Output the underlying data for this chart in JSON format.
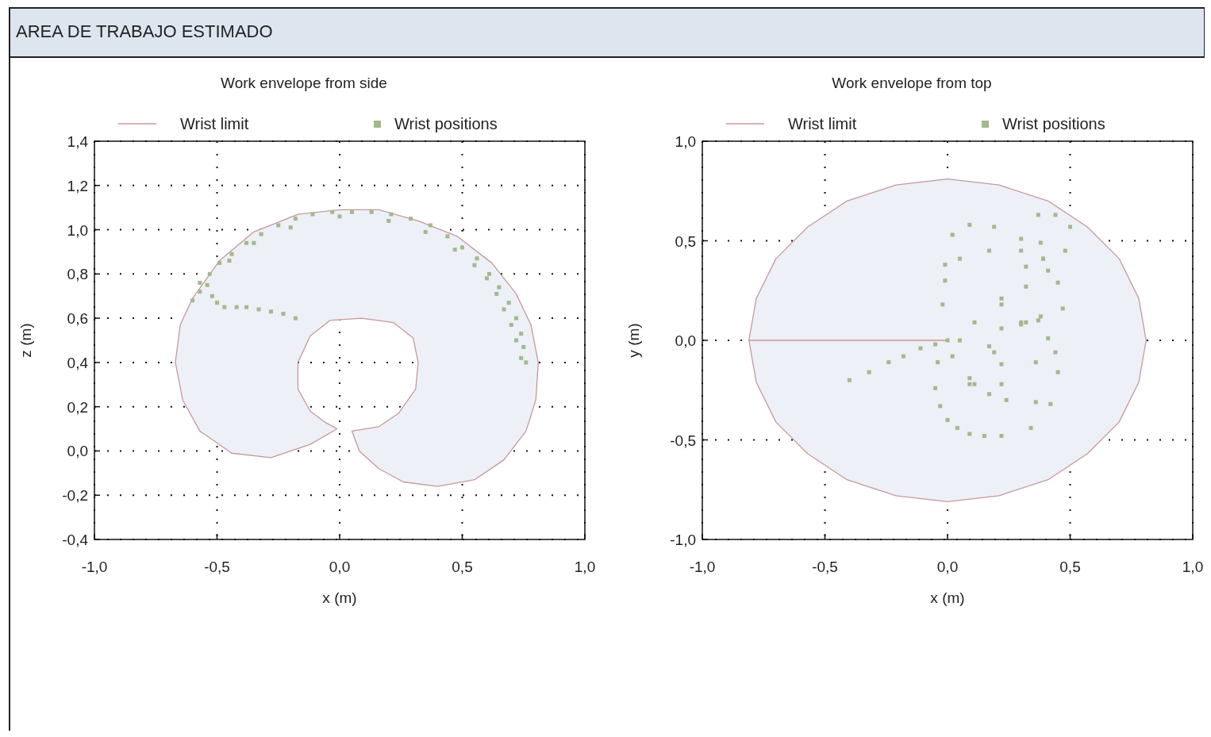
{
  "chart_data": [
    {
      "type": "other",
      "title": "AREA DE TRABAJO ESTIMADO"
    },
    {
      "type": "line",
      "title": "Work envelope from side",
      "xlabel": "x (m)",
      "ylabel": "z (m)",
      "legend": "top",
      "grid": true,
      "xlim": [
        -1,
        1
      ],
      "xticks": [
        {
          "value": -1,
          "label": "-1,0"
        },
        {
          "value": -0.5,
          "label": "-0,5"
        },
        {
          "value": 0,
          "label": "0,0"
        },
        {
          "value": 0.5,
          "label": "0,5"
        },
        {
          "value": 1,
          "label": "1,0"
        }
      ],
      "ylim": [
        -0.4,
        1.4
      ],
      "yticks": [
        {
          "value": -0.4,
          "label": "-0,4"
        },
        {
          "value": -0.2,
          "label": "-0,2"
        },
        {
          "value": 0,
          "label": "0,0"
        },
        {
          "value": 0.2,
          "label": "0,2"
        },
        {
          "value": 0.4,
          "label": "0,4"
        },
        {
          "value": 0.6,
          "label": "0,6"
        },
        {
          "value": 0.8,
          "label": "0,8"
        },
        {
          "value": 1,
          "label": "1,0"
        },
        {
          "value": 1.2,
          "label": "1,2"
        },
        {
          "value": 1.4,
          "label": "1,4"
        }
      ],
      "series": [
        {
          "name": "Wrist limit",
          "type": "area",
          "color": "#c89898",
          "x": [
            -0.01,
            -0.12,
            -0.28,
            -0.44,
            -0.57,
            -0.64,
            -0.67,
            -0.65,
            -0.6,
            -0.49,
            -0.35,
            -0.17,
            0,
            0.16,
            0.32,
            0.48,
            0.62,
            0.72,
            0.78,
            0.81,
            0.8,
            0.76,
            0.67,
            0.55,
            0.4,
            0.26,
            0.16,
            0.08,
            0.05,
            0.16,
            0.24,
            0.31,
            0.32,
            0.3,
            0.22,
            0.09,
            -0.04,
            -0.12,
            -0.17,
            -0.17,
            -0.12,
            -0.06,
            -0.01
          ],
          "values": [
            0.1,
            0.03,
            -0.03,
            -0.01,
            0.09,
            0.23,
            0.4,
            0.57,
            0.69,
            0.86,
            0.99,
            1.07,
            1.09,
            1.09,
            1.04,
            0.97,
            0.85,
            0.71,
            0.57,
            0.4,
            0.23,
            0.09,
            -0.04,
            -0.13,
            -0.16,
            -0.14,
            -0.08,
            0,
            0.09,
            0.11,
            0.17,
            0.28,
            0.4,
            0.51,
            0.58,
            0.6,
            0.59,
            0.52,
            0.4,
            0.28,
            0.18,
            0.13,
            0.1
          ]
        },
        {
          "name": "Wrist positions",
          "type": "scatter",
          "marker": "square",
          "color": "#a3b98c",
          "x": [
            -0.6,
            -0.57,
            -0.54,
            -0.52,
            -0.5,
            -0.47,
            -0.42,
            -0.38,
            -0.33,
            -0.28,
            -0.23,
            -0.18,
            -0.57,
            -0.53,
            -0.49,
            -0.44,
            -0.38,
            -0.32,
            -0.25,
            -0.18,
            -0.11,
            -0.03,
            0.05,
            0.13,
            0.21,
            0.29,
            0.37,
            0.44,
            0.5,
            0.56,
            0.61,
            0.65,
            0.69,
            0.72,
            0.74,
            0.75,
            0.76,
            -0.45,
            -0.35,
            -0.2,
            0,
            0.2,
            0.35,
            0.47,
            0.55,
            0.6,
            0.64,
            0.67,
            0.7,
            0.72,
            0.74
          ],
          "values": [
            0.68,
            0.72,
            0.75,
            0.7,
            0.67,
            0.65,
            0.65,
            0.65,
            0.64,
            0.63,
            0.62,
            0.6,
            0.76,
            0.8,
            0.85,
            0.89,
            0.94,
            0.98,
            1.02,
            1.05,
            1.07,
            1.08,
            1.08,
            1.08,
            1.07,
            1.05,
            1.02,
            0.97,
            0.92,
            0.87,
            0.8,
            0.74,
            0.67,
            0.6,
            0.53,
            0.47,
            0.4,
            0.86,
            0.94,
            1.01,
            1.06,
            1.04,
            0.99,
            0.91,
            0.84,
            0.78,
            0.71,
            0.64,
            0.57,
            0.5,
            0.42
          ]
        }
      ]
    },
    {
      "type": "line",
      "title": "Work envelope from top",
      "xlabel": "x (m)",
      "ylabel": "y (m)",
      "legend": "top",
      "grid": true,
      "xlim": [
        -1,
        1
      ],
      "xticks": [
        {
          "value": -1,
          "label": "-1,0"
        },
        {
          "value": -0.5,
          "label": "-0,5"
        },
        {
          "value": 0,
          "label": "0,0"
        },
        {
          "value": 0.5,
          "label": "0,5"
        },
        {
          "value": 1,
          "label": "1,0"
        }
      ],
      "ylim": [
        -1,
        1
      ],
      "yticks": [
        {
          "value": -1,
          "label": "-1,0"
        },
        {
          "value": -0.5,
          "label": "-0,5"
        },
        {
          "value": 0,
          "label": "0,0"
        },
        {
          "value": 0.5,
          "label": "0,5"
        },
        {
          "value": 1,
          "label": "1,0"
        }
      ],
      "series": [
        {
          "name": "Wrist limit",
          "type": "area",
          "color": "#c89898",
          "x": [
            0,
            -0.81,
            -0.78,
            -0.7,
            -0.57,
            -0.41,
            -0.21,
            0,
            0.21,
            0.41,
            0.57,
            0.7,
            0.78,
            0.81,
            0.78,
            0.7,
            0.57,
            0.41,
            0.21,
            0,
            -0.21,
            -0.41,
            -0.57,
            -0.7,
            -0.78,
            -0.81
          ],
          "values": [
            0,
            0,
            0.21,
            0.41,
            0.57,
            0.7,
            0.78,
            0.81,
            0.78,
            0.7,
            0.57,
            0.41,
            0.21,
            0,
            -0.21,
            -0.41,
            -0.57,
            -0.7,
            -0.78,
            -0.81,
            -0.78,
            -0.7,
            -0.57,
            -0.41,
            -0.21,
            0
          ]
        },
        {
          "name": "Wrist positions",
          "type": "scatter",
          "marker": "square",
          "color": "#a3b98c",
          "x": [
            -0.4,
            -0.32,
            -0.24,
            -0.18,
            -0.11,
            -0.05,
            0,
            -0.02,
            -0.01,
            -0.01,
            0.02,
            0.09,
            0.19,
            0.3,
            0.39,
            0.45,
            0.47,
            0.38,
            0.3,
            0.22,
            0.11,
            0.22,
            0.32,
            0.38,
            0.37,
            0.44,
            0.5,
            0.48,
            0.41,
            0.32,
            0.22,
            0.05,
            0.17,
            0.3,
            0.39,
            -0.04,
            -0.05,
            -0.03,
            0,
            0.04,
            0.09,
            0.15,
            0.22,
            0.34,
            0.42,
            0.45,
            0.44,
            0.41,
            0.32,
            0.05,
            0.19,
            0.36,
            0.02,
            0.09,
            0.17,
            0.22,
            0.22,
            0.17,
            0.09,
            0.11,
            0.24,
            0.36,
            0.37,
            0.3
          ],
          "values": [
            -0.2,
            -0.16,
            -0.11,
            -0.08,
            -0.04,
            -0.02,
            0,
            0.18,
            0.38,
            0.3,
            0.53,
            0.58,
            0.57,
            0.51,
            0.41,
            0.29,
            0.16,
            0.12,
            0.09,
            0.06,
            0.09,
            0.21,
            0.37,
            0.49,
            0.63,
            0.63,
            0.57,
            0.45,
            0.35,
            0.27,
            0.18,
            0.41,
            0.45,
            0.45,
            0.41,
            -0.11,
            -0.24,
            -0.33,
            -0.4,
            -0.44,
            -0.47,
            -0.48,
            -0.48,
            -0.44,
            -0.32,
            -0.16,
            -0.06,
            0.01,
            0.09,
            0,
            -0.06,
            -0.11,
            -0.08,
            -0.19,
            -0.27,
            -0.22,
            -0.12,
            -0.03,
            -0.22,
            -0.22,
            -0.3,
            -0.31,
            0.1,
            0.08
          ]
        }
      ]
    }
  ]
}
